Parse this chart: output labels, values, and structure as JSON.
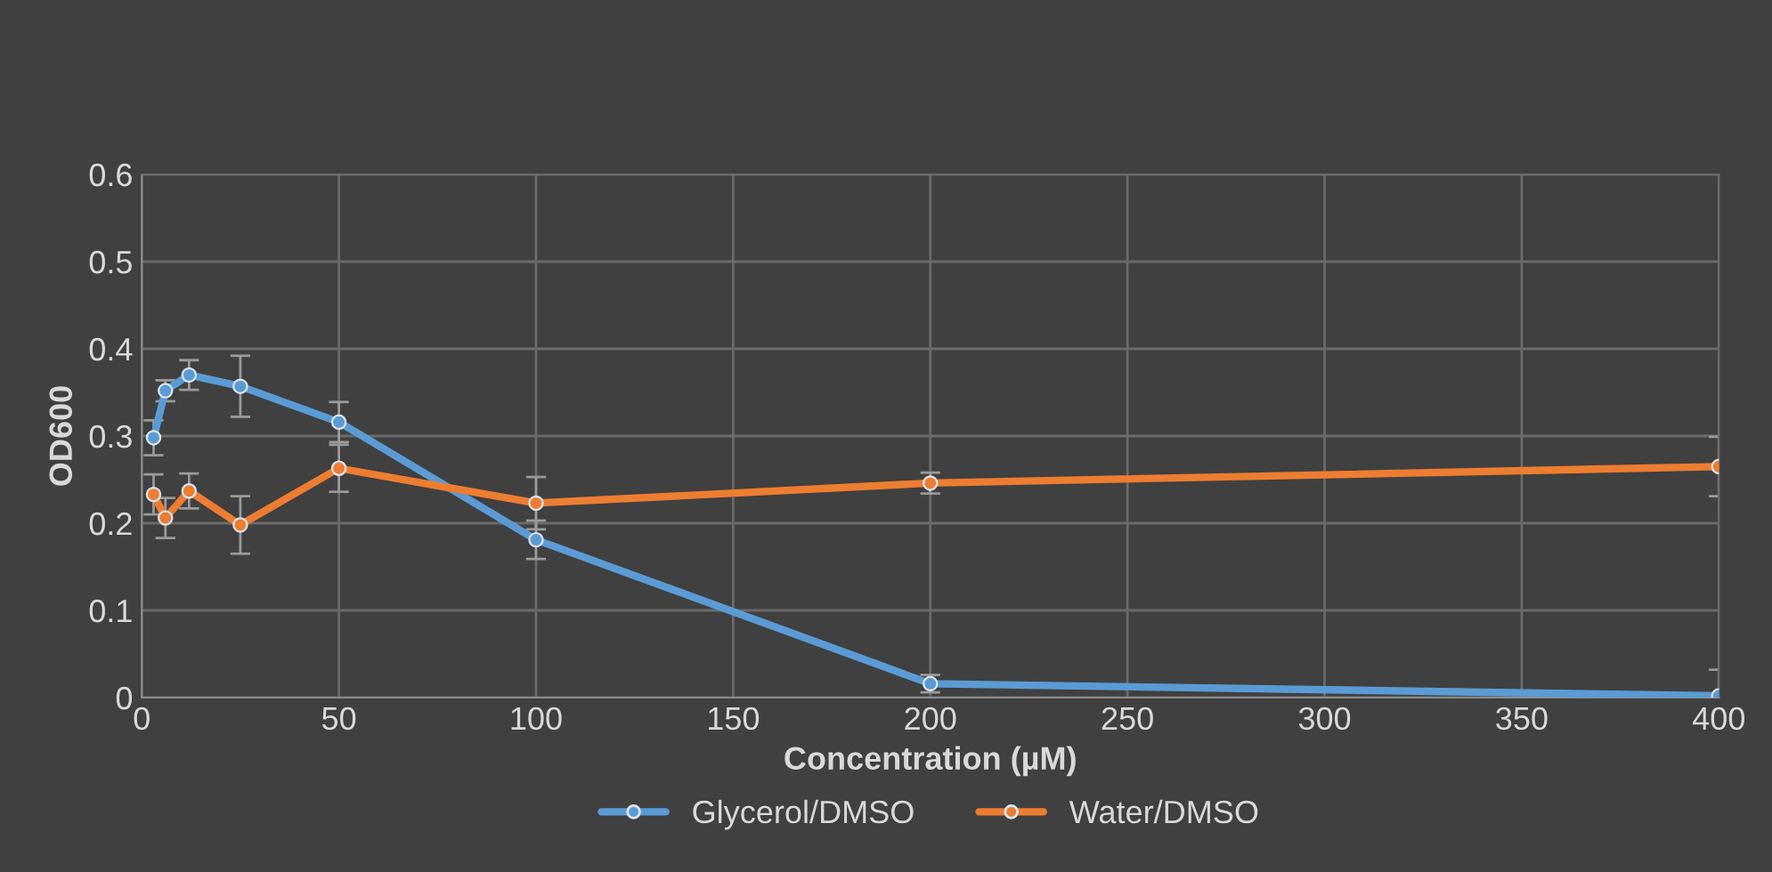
{
  "chart_data": {
    "type": "line",
    "xlabel": "Concentration (µM)",
    "ylabel": "OD600",
    "x": [
      3,
      6,
      12,
      25,
      50,
      100,
      200,
      400
    ],
    "series": [
      {
        "name": "Glycerol/DMSO",
        "color": "#5b9bd5",
        "values": [
          0.298,
          0.352,
          0.37,
          0.357,
          0.316,
          0.181,
          0.016,
          0.002
        ],
        "errors": [
          0.02,
          0.012,
          0.017,
          0.035,
          0.023,
          0.022,
          0.01,
          [
            0.002,
            0.03
          ]
        ]
      },
      {
        "name": "Water/DMSO",
        "color": "#ed7d31",
        "values": [
          0.233,
          0.206,
          0.237,
          0.198,
          0.263,
          0.223,
          0.246,
          0.265
        ],
        "errors": [
          0.023,
          0.023,
          0.02,
          0.033,
          0.027,
          0.03,
          0.012,
          0.034
        ]
      }
    ],
    "xlim": [
      0,
      400
    ],
    "xticks": [
      0,
      50,
      100,
      150,
      200,
      250,
      300,
      350,
      400
    ],
    "ylim": [
      0,
      0.6
    ],
    "yticks": [
      0,
      0.1,
      0.2,
      0.3,
      0.4,
      0.5,
      0.6
    ],
    "grid": true,
    "legend": "bottom",
    "marker": "circle",
    "line_style": "solid"
  }
}
